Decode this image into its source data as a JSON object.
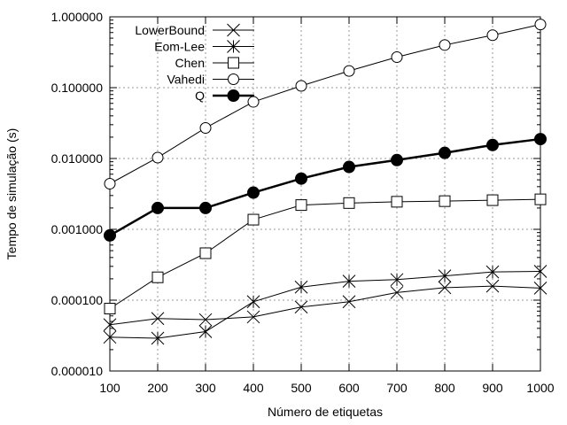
{
  "chart_data": {
    "type": "line",
    "title": "",
    "xlabel": "Número de etiquetas",
    "ylabel": "Tempo de simulação (s)",
    "x": [
      100,
      200,
      300,
      400,
      500,
      600,
      700,
      800,
      900,
      1000
    ],
    "xlim": [
      100,
      1000
    ],
    "ylim": [
      1e-05,
      1
    ],
    "yscale": "log",
    "grid": true,
    "legend_position": "top-left",
    "xticks": [
      "100",
      "200",
      "300",
      "400",
      "500",
      "600",
      "700",
      "800",
      "900",
      "1000"
    ],
    "yticks": [
      {
        "value": 1e-05,
        "label": "0.000010"
      },
      {
        "value": 0.0001,
        "label": "0.000100"
      },
      {
        "value": 0.001,
        "label": "0.001000"
      },
      {
        "value": 0.01,
        "label": "0.010000"
      },
      {
        "value": 0.1,
        "label": "0.100000"
      },
      {
        "value": 1,
        "label": "1.000000"
      }
    ],
    "series": [
      {
        "name": "LowerBound",
        "marker": "x",
        "bold": false,
        "values": [
          4.5e-05,
          5.5e-05,
          5.3e-05,
          5.8e-05,
          8e-05,
          9.5e-05,
          0.000128,
          0.00015,
          0.000158,
          0.000148
        ]
      },
      {
        "name": "Eom-Lee",
        "marker": "asterisk",
        "bold": false,
        "values": [
          3e-05,
          2.9e-05,
          3.6e-05,
          9.5e-05,
          0.000153,
          0.000185,
          0.000195,
          0.00022,
          0.00025,
          0.000255
        ]
      },
      {
        "name": "Chen",
        "marker": "square",
        "bold": false,
        "values": [
          7.6e-05,
          0.00021,
          0.00046,
          0.00137,
          0.0022,
          0.00235,
          0.00245,
          0.0025,
          0.00258,
          0.00265
        ]
      },
      {
        "name": "Vahedi",
        "marker": "circle",
        "bold": false,
        "values": [
          0.0044,
          0.0103,
          0.027,
          0.063,
          0.106,
          0.172,
          0.27,
          0.4,
          0.55,
          0.78
        ]
      },
      {
        "name": "Q",
        "marker": "filled-circle",
        "bold": true,
        "values": [
          0.00082,
          0.002,
          0.002,
          0.0033,
          0.0052,
          0.0076,
          0.0095,
          0.012,
          0.0155,
          0.0188
        ]
      }
    ]
  }
}
